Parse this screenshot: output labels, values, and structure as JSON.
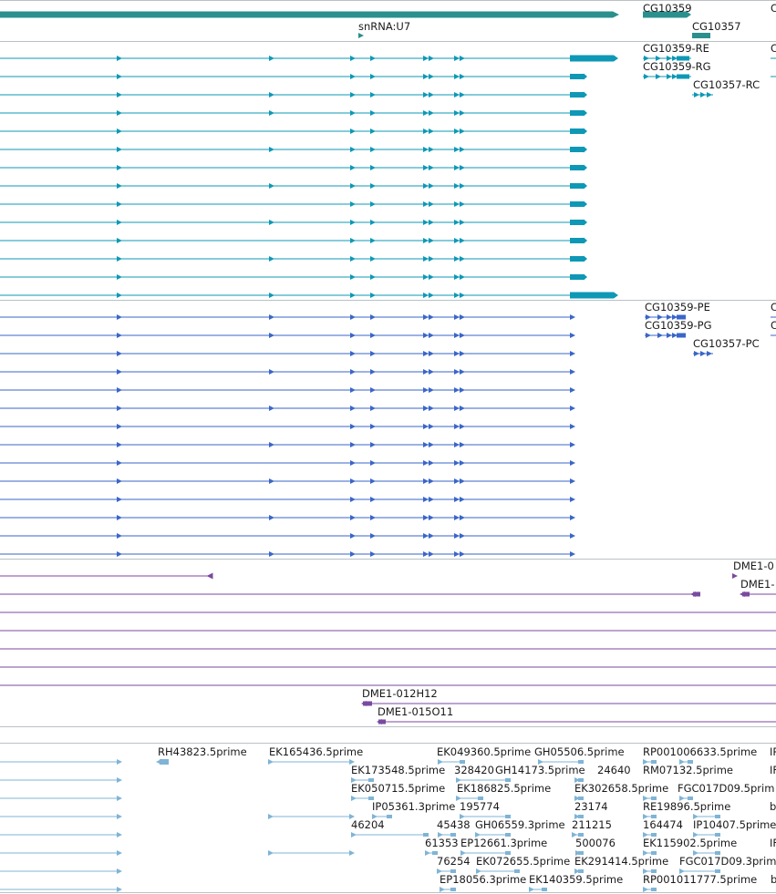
{
  "colors": {
    "gene": "#2a8f8d",
    "transcript": "#0e98b6",
    "protein": "#3a66c8",
    "clone": "#7a4aa0",
    "est": "#7fb4d6",
    "separator": "#b9c2c6"
  },
  "tracks": {
    "gene": {
      "labels": [
        "CG10359",
        "C",
        "CG10357",
        "snRNA:U7"
      ]
    },
    "transcript": {
      "labels": [
        "CG10359-RE",
        "C",
        "CG10359-RG",
        "CG10357-RC"
      ]
    },
    "protein": {
      "labels": [
        "CG10359-PE",
        "C",
        "CG10359-PG",
        "C",
        "CG10357-PC"
      ]
    },
    "clone": {
      "labels": [
        "DME1-0",
        "DME1-",
        "DME1-012H12",
        "DME1-015O11"
      ]
    },
    "est": {
      "labels": [
        "RH43823.5prime",
        "EK165436.5prime",
        "EK049360.5prime",
        "GH05506.5prime",
        "RP001006633.5prime",
        "IP",
        "EK173548.5prime",
        "328420",
        "GH14173.5prime",
        "24640",
        "RM07132.5prime",
        "IF",
        "EK050715.5prime",
        "EK186825.5prime",
        "EK302658.5prime",
        "FGC017D09.5prim",
        "IP05361.3prime",
        "195774",
        "23174",
        "RE19896.5prime",
        "b",
        "46204",
        "45438",
        "GH06559.3prime",
        "211215",
        "164474",
        "IP10407.5prime",
        "61353",
        "EP12661.3prime",
        "500076",
        "EK115902.5prime",
        "IF",
        "76254",
        "EK072655.5prime",
        "EK291414.5prime",
        "FGC017D09.3prim",
        "EP18056.3prime",
        "EK140359.5prime",
        "RP001011777.5prime",
        "b"
      ]
    }
  }
}
